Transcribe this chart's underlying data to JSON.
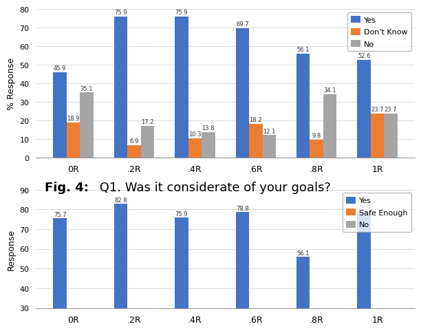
{
  "chart1": {
    "categories": [
      "0R",
      ".2R",
      ".4R",
      ".6R",
      ".8R",
      "1R"
    ],
    "yes": [
      45.9,
      75.9,
      75.9,
      69.7,
      56.1,
      52.6
    ],
    "dontknow": [
      18.9,
      6.9,
      10.3,
      18.2,
      9.8,
      23.7
    ],
    "no": [
      35.1,
      17.2,
      13.8,
      12.1,
      34.1,
      23.7
    ],
    "ylabel": "% Response",
    "ylim": [
      0,
      80
    ],
    "yticks": [
      0,
      10,
      20,
      30,
      40,
      50,
      60,
      70,
      80
    ],
    "legend_labels": [
      "Yes",
      "Don't Know",
      "No"
    ],
    "colors": [
      "#4472C4",
      "#ED7D31",
      "#A5A5A5"
    ]
  },
  "chart2": {
    "categories": [
      "0R",
      ".2R",
      ".4R",
      ".6R",
      ".8R",
      "1R"
    ],
    "yes": [
      75.7,
      82.8,
      75.9,
      78.8,
      56.1,
      78.9
    ],
    "safe_enough": [
      0.0,
      0.0,
      0.0,
      0.0,
      0.0,
      0.0
    ],
    "no": [
      0.0,
      0.0,
      0.0,
      0.0,
      0.0,
      0.0
    ],
    "ylabel": "Response",
    "ylim": [
      30,
      90
    ],
    "yticks": [
      30,
      40,
      50,
      60,
      70,
      80,
      90
    ],
    "legend_labels": [
      "Yes",
      "Safe Enough",
      "No"
    ],
    "colors": [
      "#4472C4",
      "#ED7D31",
      "#A5A5A5"
    ]
  },
  "caption_bold": "Fig. 4:",
  "caption_normal": " Q1. Was it considerate of your goals?",
  "caption_fontsize": 13,
  "bar_width": 0.22
}
